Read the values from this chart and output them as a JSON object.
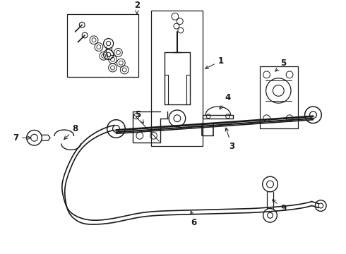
{
  "background_color": "#ffffff",
  "line_color": "#1a1a1a",
  "fig_width": 4.9,
  "fig_height": 3.6,
  "dpi": 100,
  "label_fontsize": 8.5,
  "arrow_lw": 0.7
}
